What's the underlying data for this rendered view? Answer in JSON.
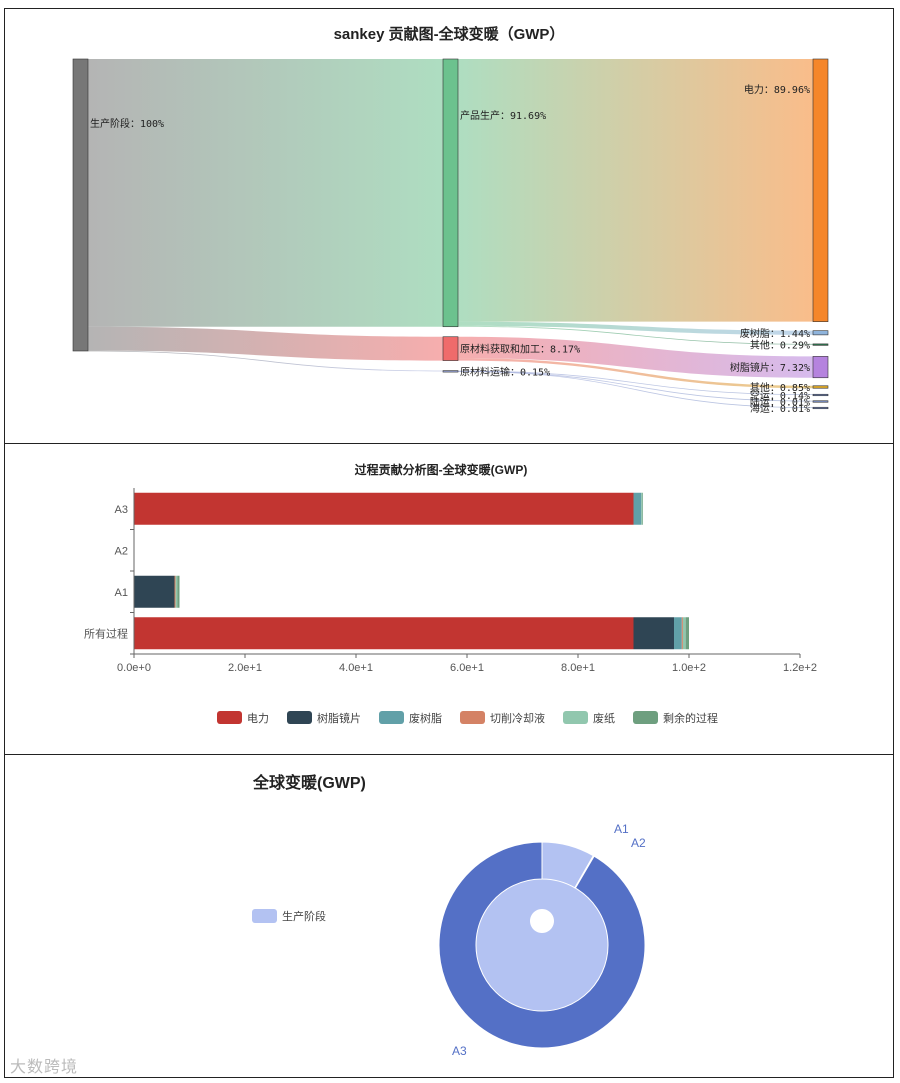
{
  "chart_data": [
    {
      "type": "sankey",
      "title": "sankey 贡献图-全球变暖（GWP）",
      "nodes": [
        {
          "id": "stage",
          "label": "生产阶段：100%",
          "value": 100,
          "color": "#777777",
          "column": 0
        },
        {
          "id": "prod",
          "label": "产品生产：91.69%",
          "value": 91.69,
          "color": "#6cc28e",
          "column": 1
        },
        {
          "id": "raw",
          "label": "原材料获取和加工：8.17%",
          "value": 8.17,
          "color": "#ef6b6b",
          "column": 1
        },
        {
          "id": "trans",
          "label": "原材料运输：0.15%",
          "value": 0.15,
          "color": "#9aa5d8",
          "column": 1
        },
        {
          "id": "elec",
          "label": "电力：89.96%",
          "value": 89.96,
          "color": "#f5862a",
          "column": 2
        },
        {
          "id": "waste_resin",
          "label": "废树脂：1.44%",
          "value": 1.44,
          "color": "#8fb4dc",
          "column": 2
        },
        {
          "id": "other1",
          "label": "其他：0.29%",
          "value": 0.29,
          "color": "#2d7a4f",
          "column": 2
        },
        {
          "id": "lens",
          "label": "树脂镜片：7.32%",
          "value": 7.32,
          "color": "#b583de",
          "column": 2
        },
        {
          "id": "other2",
          "label": "其他：0.85%",
          "value": 0.85,
          "color": "#d8a52a",
          "column": 2
        },
        {
          "id": "air",
          "label": "空运：0.14%",
          "value": 0.14,
          "color": "#7a8fc4",
          "column": 2
        },
        {
          "id": "land",
          "label": "陆运：0.01%",
          "value": 0.01,
          "color": "#7a8fc4",
          "column": 2
        },
        {
          "id": "sea",
          "label": "海运：0.01%",
          "value": 0.01,
          "color": "#7a8fc4",
          "column": 2
        }
      ],
      "links": [
        {
          "source": "stage",
          "target": "prod",
          "value": 91.69
        },
        {
          "source": "stage",
          "target": "raw",
          "value": 8.17
        },
        {
          "source": "stage",
          "target": "trans",
          "value": 0.15
        },
        {
          "source": "prod",
          "target": "elec",
          "value": 89.96
        },
        {
          "source": "prod",
          "target": "waste_resin",
          "value": 1.44
        },
        {
          "source": "prod",
          "target": "other1",
          "value": 0.29
        },
        {
          "source": "raw",
          "target": "lens",
          "value": 7.32
        },
        {
          "source": "raw",
          "target": "other2",
          "value": 0.85
        },
        {
          "source": "trans",
          "target": "air",
          "value": 0.14
        },
        {
          "source": "trans",
          "target": "land",
          "value": 0.01
        },
        {
          "source": "trans",
          "target": "sea",
          "value": 0.01
        }
      ]
    },
    {
      "type": "bar",
      "orientation": "horizontal",
      "stacked": true,
      "title": "过程贡献分析图-全球变暖(GWP)",
      "categories": [
        "所有过程",
        "A1",
        "A2",
        "A3"
      ],
      "series": [
        {
          "name": "电力",
          "color": "#c23531",
          "values": [
            90.0,
            0,
            0,
            90.0
          ]
        },
        {
          "name": "树脂镜片",
          "color": "#2f4554",
          "values": [
            7.3,
            7.3,
            0,
            0
          ]
        },
        {
          "name": "废树脂",
          "color": "#61a0a8",
          "values": [
            1.4,
            0,
            0,
            1.4
          ]
        },
        {
          "name": "切削冷却液",
          "color": "#d48265",
          "values": [
            0.2,
            0.2,
            0,
            0
          ]
        },
        {
          "name": "废纸",
          "color": "#91c7ae",
          "values": [
            0.5,
            0.3,
            0,
            0.2
          ]
        },
        {
          "name": "剩余的过程",
          "color": "#6e9f7f",
          "values": [
            0.6,
            0.4,
            0,
            0.1
          ]
        }
      ],
      "xlim": [
        0,
        120
      ],
      "xticks": [
        "0.0e+0",
        "2.0e+1",
        "4.0e+1",
        "6.0e+1",
        "8.0e+1",
        "1.0e+2",
        "1.2e+2"
      ],
      "legend": "bottom"
    },
    {
      "type": "pie",
      "subtype": "nested-ring",
      "title": "全球变暖(GWP)",
      "legend": {
        "items": [
          "生产阶段"
        ],
        "placement": "left"
      },
      "inner": [
        {
          "name": "生产阶段",
          "value": 100,
          "color": "#b3c2f2"
        }
      ],
      "outer": [
        {
          "name": "A1",
          "value": 8.3,
          "color": "#b3c2f2"
        },
        {
          "name": "A2",
          "value": 0.15,
          "color": "#b3c2f2"
        },
        {
          "name": "A3",
          "value": 91.55,
          "color": "#5470c6"
        }
      ],
      "label_color": "#5470c6"
    }
  ],
  "watermark": "大数跨境"
}
